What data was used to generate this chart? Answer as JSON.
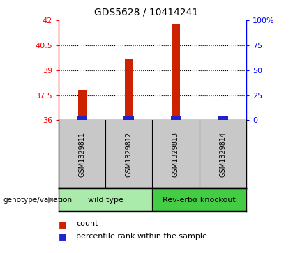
{
  "title": "GDS5628 / 10414241",
  "samples": [
    "GSM1329811",
    "GSM1329812",
    "GSM1329813",
    "GSM1329814"
  ],
  "count_values": [
    37.8,
    39.65,
    41.75,
    36.22
  ],
  "percentile_values": [
    4.5,
    4.5,
    4.5,
    4.5
  ],
  "ylim_left": [
    36,
    42
  ],
  "ylim_right": [
    0,
    100
  ],
  "yticks_left": [
    36,
    37.5,
    39,
    40.5,
    42
  ],
  "ytick_labels_left": [
    "36",
    "37.5",
    "39",
    "40.5",
    "42"
  ],
  "yticks_right": [
    0,
    25,
    50,
    75,
    100
  ],
  "ytick_labels_right": [
    "0",
    "25",
    "50",
    "75",
    "100%"
  ],
  "groups": [
    {
      "label": "wild type",
      "samples": [
        0,
        1
      ],
      "color": "#AAEAAA"
    },
    {
      "label": "Rev-erbα knockout",
      "samples": [
        2,
        3
      ],
      "color": "#44CC44"
    }
  ],
  "bar_color_red": "#CC2200",
  "bar_color_blue": "#2222CC",
  "bar_width": 0.18,
  "blue_bar_width": 0.22,
  "background_sample": "#C8C8C8",
  "genotype_label": "genotype/variation"
}
